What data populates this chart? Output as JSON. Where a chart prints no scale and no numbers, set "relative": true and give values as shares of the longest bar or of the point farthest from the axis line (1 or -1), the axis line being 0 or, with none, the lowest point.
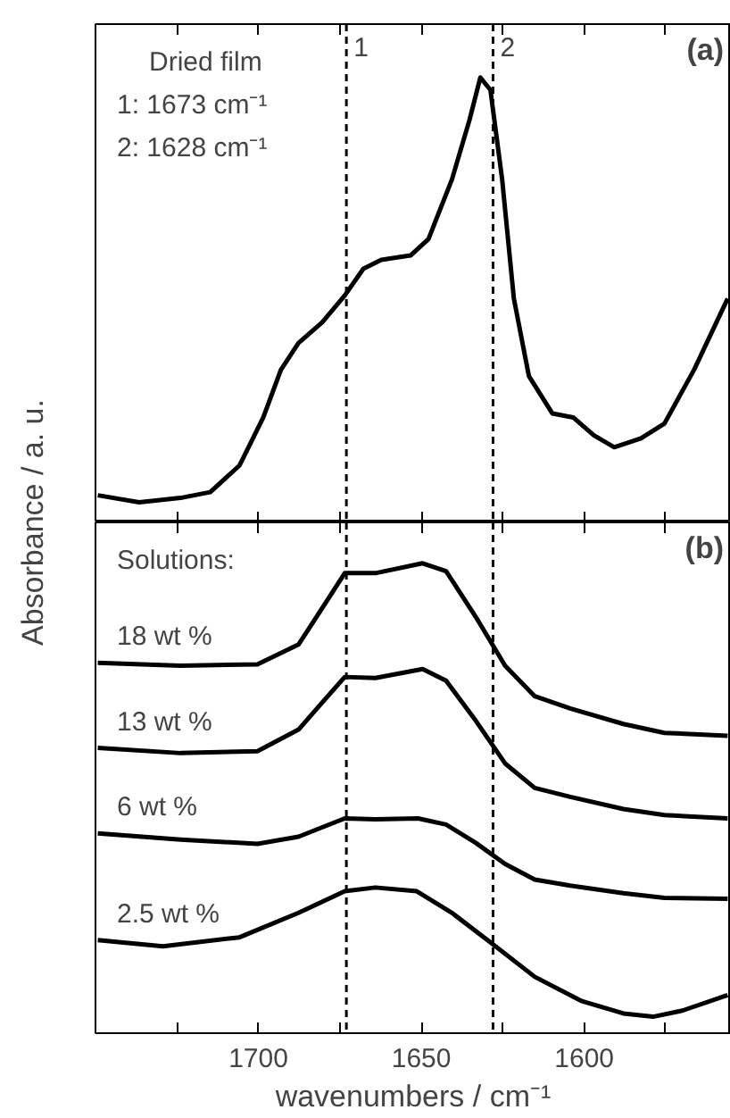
{
  "chart_data": [
    {
      "type": "line",
      "title": "(a)",
      "ylabel": "Absorbance / a. u.",
      "relative": true,
      "xlim": [
        1750,
        1555
      ],
      "xticks": [
        {
          "value": 1725,
          "label": null
        },
        {
          "value": 1700,
          "label": null
        },
        {
          "value": 1675,
          "label": null
        },
        {
          "value": 1650,
          "label": null
        },
        {
          "value": 1625,
          "label": null
        },
        {
          "value": 1600,
          "label": null
        },
        {
          "value": 1575,
          "label": null
        }
      ],
      "tick_labels": false,
      "grid": false,
      "annotations": [
        "Dried film",
        "1: 1673 cm⁻¹",
        "2: 1628 cm⁻¹",
        {
          "text": "1",
          "x": 1673,
          "y": 1.07
        },
        {
          "text": "2",
          "x": 1628,
          "y": 1.07
        }
      ],
      "ref_lines": [
        {
          "axis": "x",
          "value": 1673,
          "color": "#000000",
          "line_style": "dashed"
        },
        {
          "axis": "x",
          "value": 1628,
          "color": "#000000",
          "line_style": "dashed"
        }
      ],
      "series": [
        {
          "color": "#000000",
          "x": [
            1749.3,
            1736.6,
            1723.9,
            1714.8,
            1705.8,
            1698.5,
            1693.1,
            1687.7,
            1680.4,
            1673.5,
            1667.8,
            1662.3,
            1653.3,
            1647.8,
            1640.6,
            1635.2,
            1631.9,
            1628.8,
            1625.2,
            1621.6,
            1617.0,
            1609.8,
            1603.4,
            1597.1,
            1590.8,
            1582.6,
            1575.4,
            1566.3,
            1556
          ],
          "values": [
            0.061,
            0.045,
            0.055,
            0.068,
            0.128,
            0.236,
            0.343,
            0.403,
            0.45,
            0.51,
            0.57,
            0.59,
            0.6,
            0.637,
            0.771,
            0.905,
            1.0,
            0.972,
            0.771,
            0.503,
            0.329,
            0.245,
            0.236,
            0.196,
            0.169,
            0.189,
            0.222,
            0.343,
            0.503
          ]
        }
      ]
    },
    {
      "type": "line",
      "title": "(b)",
      "xlabel": "wavenumbers / cm⁻¹",
      "relative": true,
      "xlim": [
        1750,
        1555
      ],
      "xticks": [
        {
          "value": 1725,
          "label": null
        },
        1700,
        {
          "value": 1675,
          "label": null
        },
        1650,
        {
          "value": 1625,
          "label": null
        },
        1600,
        {
          "value": 1575,
          "label": null
        }
      ],
      "tick_labels": "x",
      "grid": false,
      "annotations": [
        "Solutions:"
      ],
      "ref_lines": [
        {
          "axis": "x",
          "value": 1673,
          "color": "#000000",
          "line_style": "dashed"
        },
        {
          "axis": "x",
          "value": 1628,
          "color": "#000000",
          "line_style": "dashed"
        }
      ],
      "series": [
        {
          "name": "18 wt %",
          "color": "#000000",
          "x": [
            1749.3,
            1723.9,
            1700.3,
            1687.7,
            1680.4,
            1673.5,
            1664.1,
            1649.6,
            1642.4,
            1633.3,
            1624.3,
            1615.2,
            1604.3,
            1588.0,
            1575.4,
            1556
          ],
          "values": [
            0.788,
            0.782,
            0.785,
            0.827,
            0.905,
            0.979,
            0.979,
            1.0,
            0.983,
            0.886,
            0.782,
            0.717,
            0.691,
            0.658,
            0.639,
            0.633
          ]
        },
        {
          "name": "13 wt %",
          "color": "#000000",
          "x": [
            1749.3,
            1723.9,
            1700.3,
            1687.7,
            1680.4,
            1673.5,
            1664.1,
            1649.6,
            1642.4,
            1633.3,
            1624.3,
            1615.2,
            1604.3,
            1588.0,
            1575.4,
            1556
          ],
          "values": [
            0.607,
            0.596,
            0.6,
            0.646,
            0.704,
            0.758,
            0.756,
            0.775,
            0.75,
            0.665,
            0.574,
            0.522,
            0.503,
            0.477,
            0.464,
            0.457
          ]
        },
        {
          "name": "6 wt %",
          "color": "#000000",
          "x": [
            1749.3,
            1723.9,
            1700.3,
            1687.7,
            1673.5,
            1664.1,
            1651.0,
            1642.4,
            1633.3,
            1624.3,
            1615.2,
            1604.3,
            1588.0,
            1575.4,
            1556
          ],
          "values": [
            0.425,
            0.412,
            0.403,
            0.418,
            0.457,
            0.455,
            0.457,
            0.444,
            0.405,
            0.36,
            0.327,
            0.314,
            0.298,
            0.288,
            0.286
          ]
        },
        {
          "name": "2.5 wt %",
          "color": "#000000",
          "x": [
            1749.3,
            1729.3,
            1705.8,
            1687.7,
            1673.5,
            1664.1,
            1651.4,
            1640.6,
            1629.7,
            1615.2,
            1600.7,
            1588.0,
            1578.9,
            1569.9,
            1556
          ],
          "values": [
            0.198,
            0.185,
            0.204,
            0.256,
            0.302,
            0.31,
            0.302,
            0.256,
            0.198,
            0.12,
            0.068,
            0.042,
            0.035,
            0.048,
            0.081
          ]
        }
      ]
    }
  ]
}
